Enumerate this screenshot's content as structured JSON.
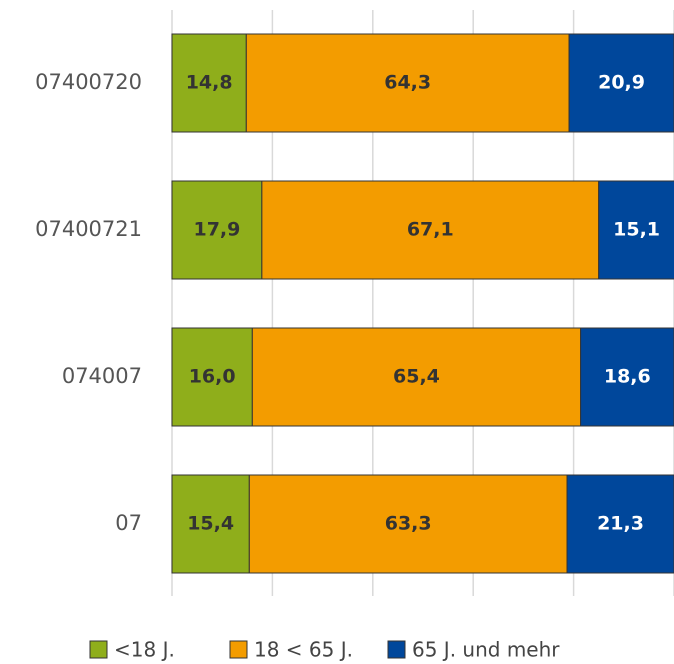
{
  "chart_data": {
    "type": "stacked_bar_horizontal",
    "categories": [
      "07400720",
      "07400721",
      "074007",
      "07"
    ],
    "series": [
      {
        "name": "<18 J.",
        "color": "#8fae1b",
        "values": [
          14.8,
          17.9,
          16.0,
          15.4
        ],
        "value_labels": [
          "14,8",
          "17,9",
          "16,0",
          "15,4"
        ]
      },
      {
        "name": "18 < 65 J.",
        "color": "#f39c00",
        "values": [
          64.3,
          67.1,
          65.4,
          63.3
        ],
        "value_labels": [
          "64,3",
          "67,1",
          "65,4",
          "63,3"
        ]
      },
      {
        "name": "65 J. und mehr",
        "color": "#00479b",
        "values": [
          20.9,
          15.1,
          18.6,
          21.3
        ],
        "value_labels": [
          "20,9",
          "15,1",
          "18,6",
          "21,3"
        ]
      }
    ],
    "xlim": [
      0,
      100
    ],
    "xticks": [
      0,
      20,
      40,
      60,
      80,
      100
    ],
    "grid": true,
    "legend": "bottom"
  }
}
